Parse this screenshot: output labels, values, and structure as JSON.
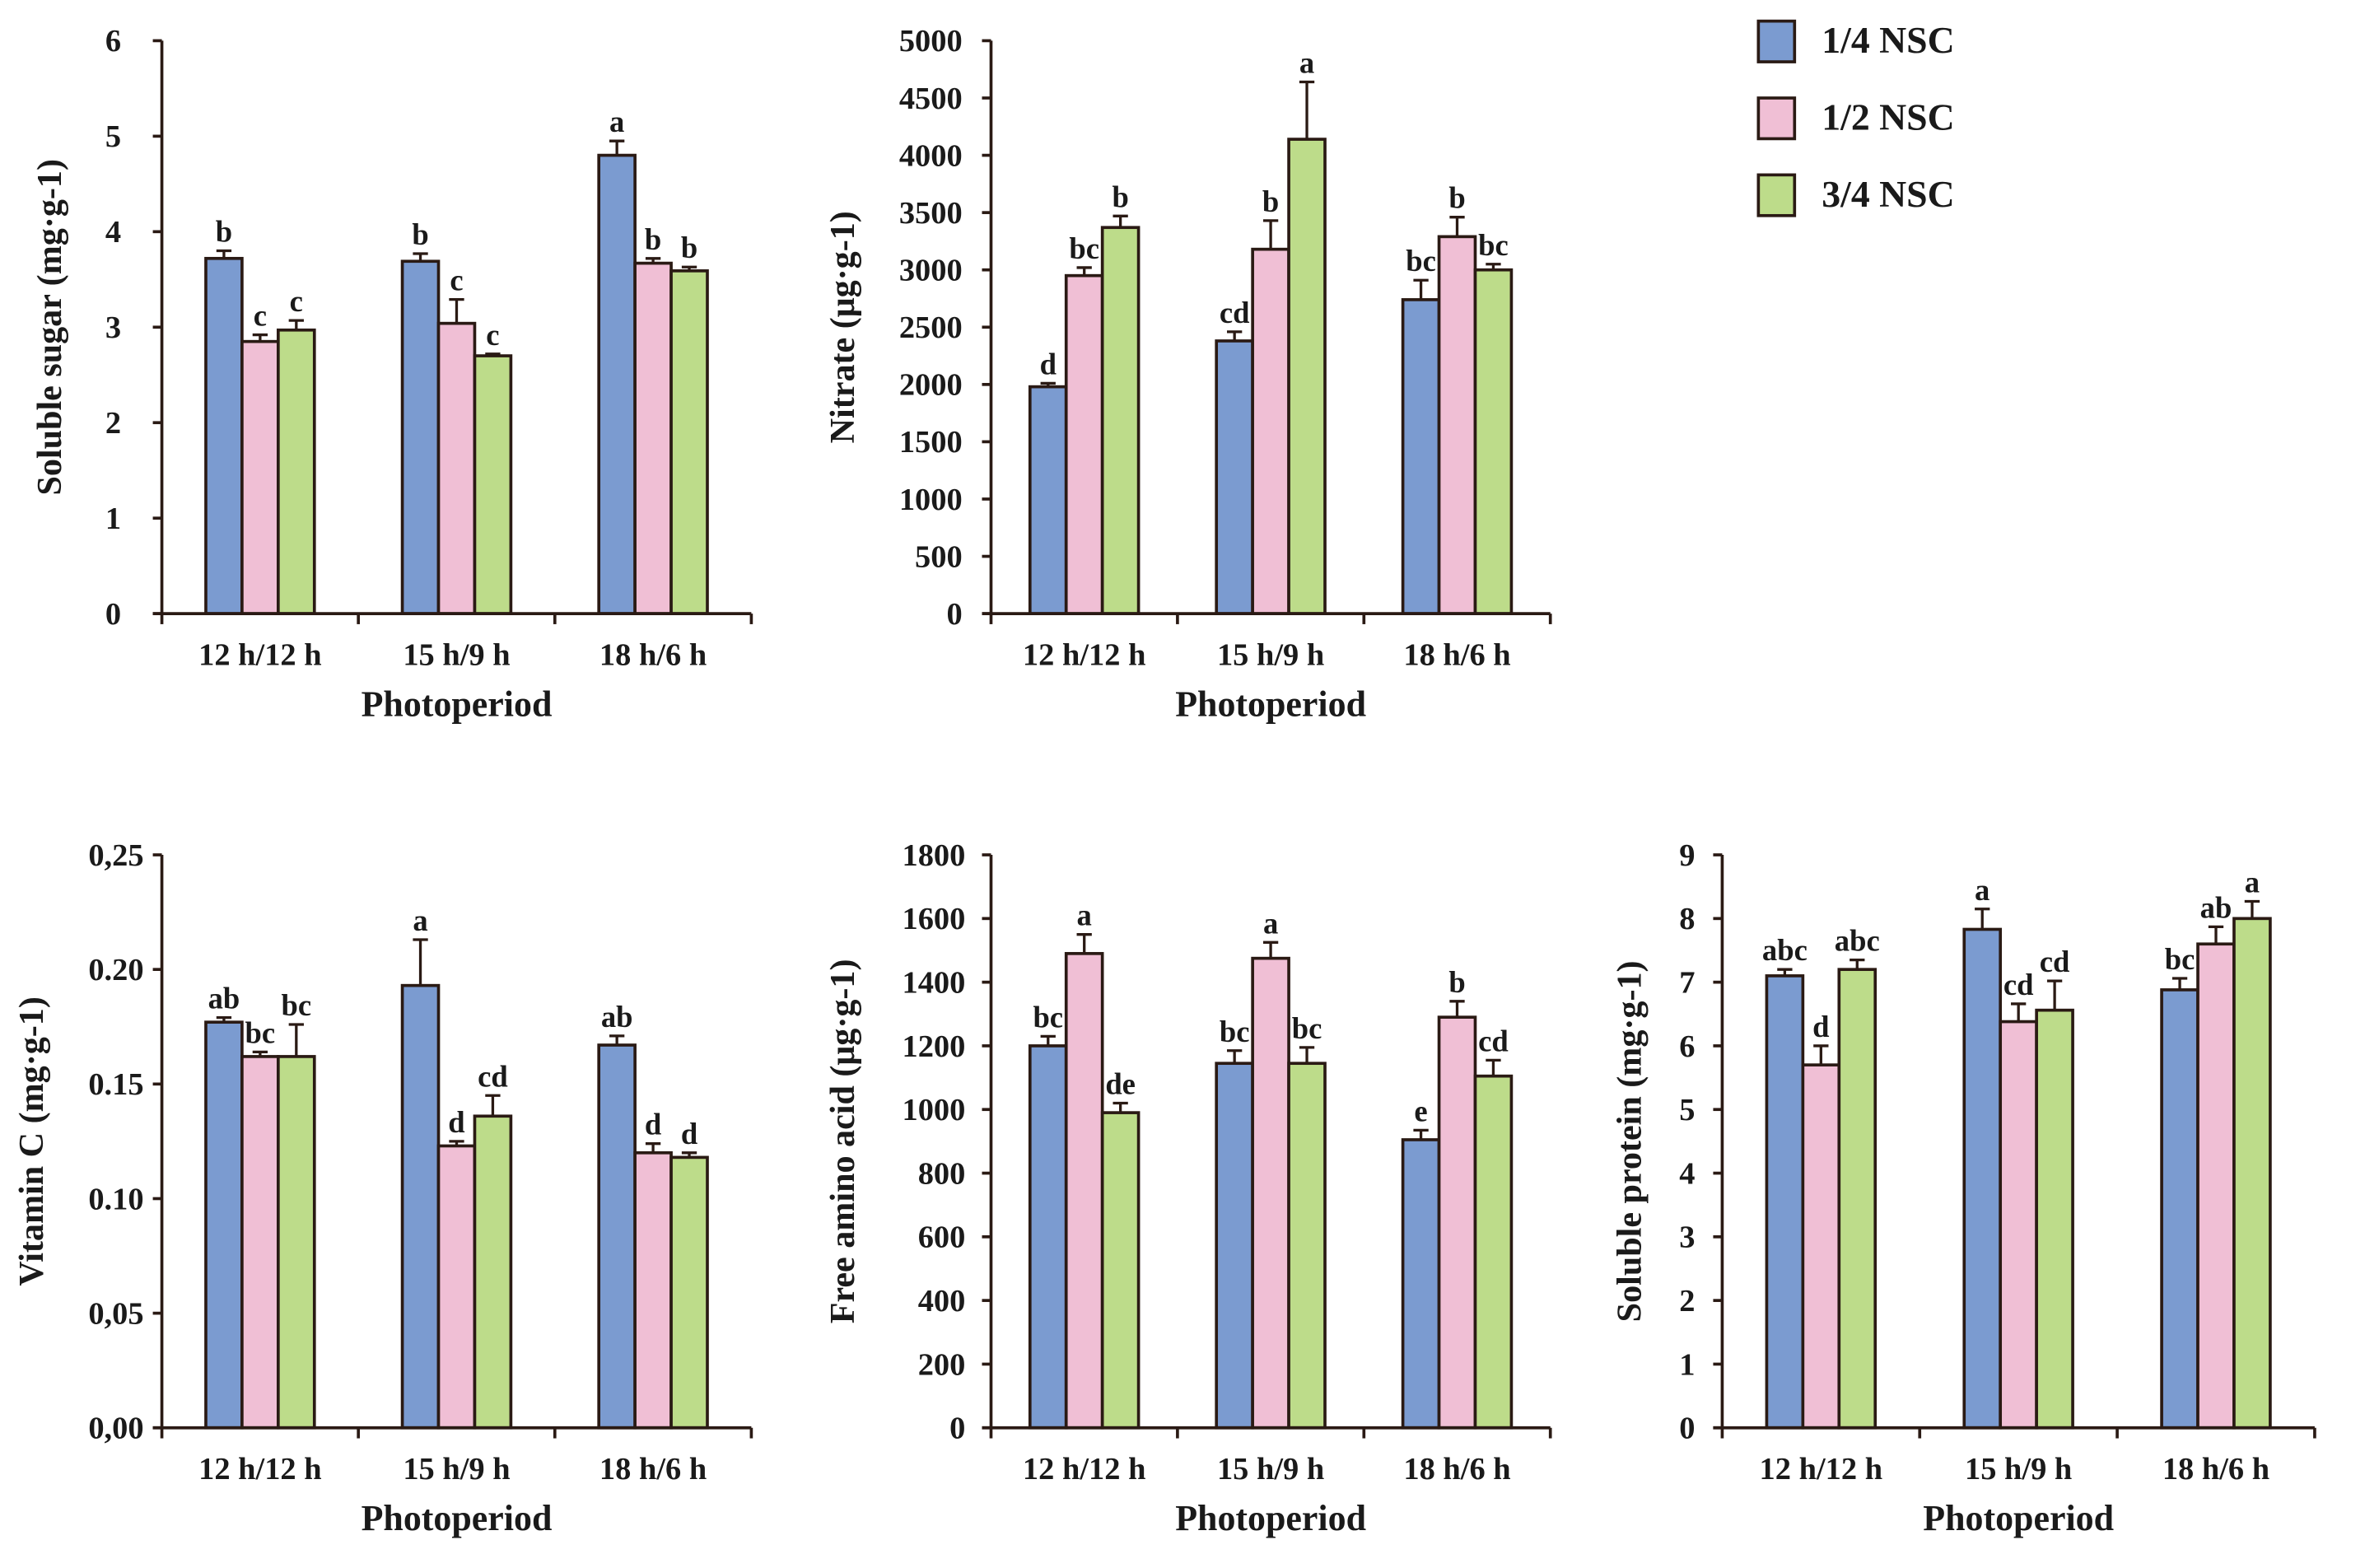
{
  "legend": [
    {
      "label": "1/4 NSC",
      "color": "#7b9bd0"
    },
    {
      "label": "1/2 NSC",
      "color": "#f0bfd5"
    },
    {
      "label": "3/4 NSC",
      "color": "#bddc8a"
    }
  ],
  "chart_data": [
    {
      "type": "bar",
      "title": "",
      "xlabel": "Photoperiod",
      "ylabel": "Soluble sugar (mg·g-1)",
      "categories": [
        "12 h/12 h",
        "15 h/9 h",
        "18 h/6 h"
      ],
      "ylim": [
        0,
        6
      ],
      "yticks": [
        0,
        1,
        2,
        3,
        4,
        5,
        6
      ],
      "ytick_labels": [
        "0",
        "1",
        "2",
        "3",
        "4",
        "5",
        "6"
      ],
      "series": [
        {
          "name": "1/4 NSC",
          "values": [
            3.72,
            3.69,
            4.8
          ],
          "errors": [
            0.08,
            0.08,
            0.15
          ],
          "letters": [
            "b",
            "b",
            "a"
          ]
        },
        {
          "name": "1/2 NSC",
          "values": [
            2.85,
            3.04,
            3.67
          ],
          "errors": [
            0.07,
            0.25,
            0.05
          ],
          "letters": [
            "c",
            "c",
            "b"
          ]
        },
        {
          "name": "3/4 NSC",
          "values": [
            2.97,
            2.7,
            3.59
          ],
          "errors": [
            0.1,
            0.02,
            0.04
          ],
          "letters": [
            "c",
            "c",
            "b"
          ]
        }
      ]
    },
    {
      "type": "bar",
      "title": "",
      "xlabel": "Photoperiod",
      "ylabel": "Nitrate (μg·g-1)",
      "categories": [
        "12 h/12 h",
        "15 h/9 h",
        "18 h/6 h"
      ],
      "ylim": [
        0,
        5000
      ],
      "yticks": [
        0,
        500,
        1000,
        1500,
        2000,
        2500,
        3000,
        3500,
        4000,
        4500,
        5000
      ],
      "ytick_labels": [
        "0",
        "500",
        "1000",
        "1500",
        "2000",
        "2500",
        "3000",
        "3500",
        "4000",
        "4500",
        "5000"
      ],
      "series": [
        {
          "name": "1/4 NSC",
          "values": [
            1980,
            2380,
            2740
          ],
          "errors": [
            30,
            80,
            170
          ],
          "letters": [
            "d",
            "cd",
            "bc"
          ]
        },
        {
          "name": "1/2 NSC",
          "values": [
            2950,
            3180,
            3290
          ],
          "errors": [
            70,
            250,
            170
          ],
          "letters": [
            "bc",
            "b",
            "b"
          ]
        },
        {
          "name": "3/4 NSC",
          "values": [
            3370,
            4140,
            3000
          ],
          "errors": [
            100,
            500,
            50
          ],
          "letters": [
            "b",
            "a",
            "bc"
          ]
        }
      ]
    },
    {
      "type": "bar",
      "title": "",
      "xlabel": "Photoperiod",
      "ylabel": "Vitamin C (mg·g-1)",
      "categories": [
        "12 h/12 h",
        "15 h/9 h",
        "18 h/6 h"
      ],
      "ylim": [
        0,
        0.25
      ],
      "yticks": [
        0,
        0.05,
        0.1,
        0.15,
        0.2,
        0.25
      ],
      "ytick_labels": [
        "0,00",
        "0,05",
        "0.10",
        "0.15",
        "0.20",
        "0,25"
      ],
      "series": [
        {
          "name": "1/4 NSC",
          "values": [
            0.177,
            0.193,
            0.167
          ],
          "errors": [
            0.002,
            0.02,
            0.004
          ],
          "letters": [
            "ab",
            "a",
            "ab"
          ]
        },
        {
          "name": "1/2 NSC",
          "values": [
            0.162,
            0.123,
            0.12
          ],
          "errors": [
            0.002,
            0.002,
            0.004
          ],
          "letters": [
            "bc",
            "d",
            "d"
          ]
        },
        {
          "name": "3/4 NSC",
          "values": [
            0.162,
            0.136,
            0.118
          ],
          "errors": [
            0.014,
            0.009,
            0.002
          ],
          "letters": [
            "bc",
            "cd",
            "d"
          ]
        }
      ]
    },
    {
      "type": "bar",
      "title": "",
      "xlabel": "Photoperiod",
      "ylabel": "Free amino acid (μg·g-1)",
      "categories": [
        "12 h/12 h",
        "15 h/9 h",
        "18 h/6 h"
      ],
      "ylim": [
        0,
        1800
      ],
      "yticks": [
        0,
        200,
        400,
        600,
        800,
        1000,
        1200,
        1400,
        1600,
        1800
      ],
      "ytick_labels": [
        "0",
        "200",
        "400",
        "600",
        "800",
        "1000",
        "1200",
        "1400",
        "1600",
        "1800"
      ],
      "series": [
        {
          "name": "1/4 NSC",
          "values": [
            1200,
            1145,
            905
          ],
          "errors": [
            30,
            40,
            30
          ],
          "letters": [
            "bc",
            "bc",
            "e"
          ]
        },
        {
          "name": "1/2 NSC",
          "values": [
            1490,
            1475,
            1290
          ],
          "errors": [
            60,
            50,
            50
          ],
          "letters": [
            "a",
            "a",
            "b"
          ]
        },
        {
          "name": "3/4 NSC",
          "values": [
            990,
            1145,
            1105
          ],
          "errors": [
            30,
            50,
            50
          ],
          "letters": [
            "de",
            "bc",
            "cd"
          ]
        }
      ]
    },
    {
      "type": "bar",
      "title": "",
      "xlabel": "Photoperiod",
      "ylabel": "Soluble protein (mg·g-1)",
      "categories": [
        "12 h/12 h",
        "15 h/9 h",
        "18 h/6 h"
      ],
      "ylim": [
        0,
        9
      ],
      "yticks": [
        0,
        1,
        2,
        3,
        4,
        5,
        6,
        7,
        8,
        9
      ],
      "ytick_labels": [
        "0",
        "1",
        "2",
        "3",
        "4",
        "5",
        "6",
        "7",
        "8",
        "9"
      ],
      "series": [
        {
          "name": "1/4 NSC",
          "values": [
            7.1,
            7.83,
            6.88
          ],
          "errors": [
            0.1,
            0.32,
            0.18
          ],
          "letters": [
            "abc",
            "a",
            "bc"
          ]
        },
        {
          "name": "1/2 NSC",
          "values": [
            5.7,
            6.38,
            7.6
          ],
          "errors": [
            0.3,
            0.28,
            0.27
          ],
          "letters": [
            "d",
            "cd",
            "ab"
          ]
        },
        {
          "name": "3/4 NSC",
          "values": [
            7.2,
            6.56,
            8.0
          ],
          "errors": [
            0.15,
            0.46,
            0.27
          ],
          "letters": [
            "abc",
            "cd",
            "a"
          ]
        }
      ]
    }
  ]
}
